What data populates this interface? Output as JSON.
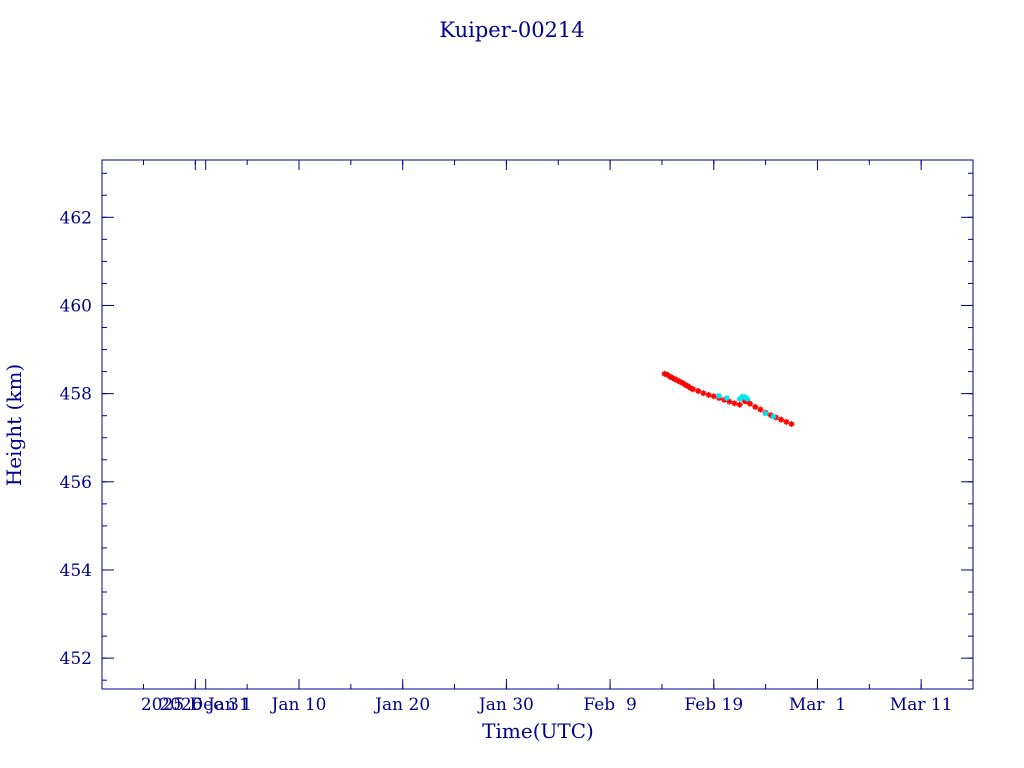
{
  "colors": {
    "axis": "#00008b",
    "text": "#00008b",
    "series_main": "#ff0000",
    "series_alt": "#00e5ee"
  },
  "chart_data": {
    "type": "scatter",
    "title": "Kuiper-00214",
    "xlabel": "Time(UTC)",
    "ylabel": "Height (km)",
    "xlim": [
      "2025-12-22",
      "2026-03-16"
    ],
    "ylim": [
      451.3,
      463.3
    ],
    "x_ticks": [
      {
        "value": "2025-12-31",
        "label": "2025 Dec 31"
      },
      {
        "value": "2026-01-01",
        "label": "2026 Jan 1"
      },
      {
        "value": "2026-01-10",
        "label": "Jan 10"
      },
      {
        "value": "2026-01-20",
        "label": "Jan 20"
      },
      {
        "value": "2026-01-30",
        "label": "Jan 30"
      },
      {
        "value": "2026-02-09",
        "label": "Feb  9"
      },
      {
        "value": "2026-02-19",
        "label": "Feb 19"
      },
      {
        "value": "2026-03-01",
        "label": "Mar  1"
      },
      {
        "value": "2026-03-11",
        "label": "Mar 11"
      }
    ],
    "y_ticks": [
      452,
      454,
      456,
      458,
      460,
      462
    ],
    "grid": false,
    "series": [
      {
        "color": "#ff0000",
        "marker": "star",
        "x": [
          "2026-02-14T06:00",
          "2026-02-14T12:00",
          "2026-02-14T18:00",
          "2026-02-15T00:00",
          "2026-02-15T06:00",
          "2026-02-15T12:00",
          "2026-02-15T18:00",
          "2026-02-16T00:00",
          "2026-02-16T06:00",
          "2026-02-16T12:00",
          "2026-02-16T18:00",
          "2026-02-17T00:00",
          "2026-02-17T12:00",
          "2026-02-18T00:00",
          "2026-02-18T12:00",
          "2026-02-19T00:00",
          "2026-02-19T12:00",
          "2026-02-20T00:00",
          "2026-02-20T12:00",
          "2026-02-21T00:00",
          "2026-02-21T12:00",
          "2026-02-22T00:00",
          "2026-02-22T06:00",
          "2026-02-22T12:00",
          "2026-02-23T00:00",
          "2026-02-23T12:00",
          "2026-02-24T00:00",
          "2026-02-24T12:00",
          "2026-02-25T00:00",
          "2026-02-25T12:00",
          "2026-02-26T00:00",
          "2026-02-26T12:00"
        ],
        "y": [
          458.45,
          458.43,
          458.39,
          458.36,
          458.33,
          458.3,
          458.27,
          458.24,
          458.2,
          458.17,
          458.13,
          458.1,
          458.06,
          458.01,
          457.97,
          457.94,
          457.9,
          457.86,
          457.82,
          457.78,
          457.75,
          457.83,
          457.82,
          457.77,
          457.7,
          457.64,
          457.57,
          457.51,
          457.46,
          457.41,
          457.36,
          457.31
        ]
      },
      {
        "color": "#00e5ee",
        "marker": "star",
        "x": [
          "2026-02-19T12:00",
          "2026-02-20T06:00",
          "2026-02-21T12:00",
          "2026-02-21T18:00",
          "2026-02-22T00:00",
          "2026-02-22T06:00",
          "2026-02-24T00:00",
          "2026-02-24T18:00"
        ],
        "y": [
          457.95,
          457.9,
          457.88,
          457.93,
          457.92,
          457.88,
          457.55,
          457.48
        ]
      }
    ]
  }
}
